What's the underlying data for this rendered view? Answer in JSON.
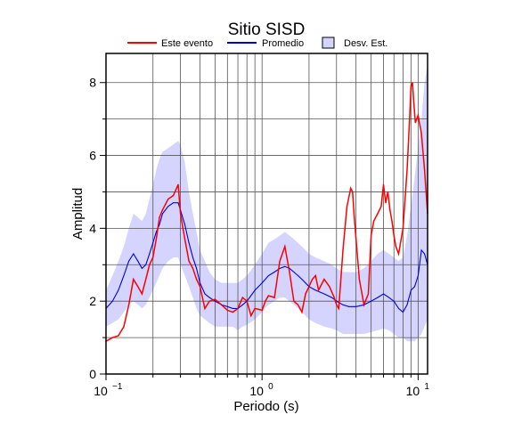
{
  "chart_data": {
    "type": "line",
    "title": "Sitio SISD",
    "xlabel": "Periodo (s)",
    "ylabel": "Amplitud",
    "x_scale": "log",
    "xlim": [
      0.1,
      11.5
    ],
    "ylim": [
      0,
      8.8
    ],
    "x_ticks": [
      {
        "value": 0.1,
        "mant": "10",
        "exp": "−1"
      },
      {
        "value": 1,
        "mant": "10",
        "exp": "0"
      },
      {
        "value": 10,
        "mant": "10",
        "exp": "1"
      }
    ],
    "y_ticks": [
      0,
      2,
      4,
      6,
      8
    ],
    "grid": true,
    "legend_position": "top",
    "legend": [
      {
        "label": "Este evento",
        "kind": "line",
        "color": "#ff0000"
      },
      {
        "label": "Promedio",
        "kind": "line",
        "color": "#0000dd"
      },
      {
        "label": "Desv. Est.",
        "kind": "box",
        "color": "#d4d4ff"
      }
    ],
    "series": [
      {
        "name": "Este evento",
        "color": "#ff0000",
        "x": [
          0.1,
          0.11,
          0.12,
          0.13,
          0.14,
          0.15,
          0.16,
          0.17,
          0.18,
          0.19,
          0.2,
          0.21,
          0.22,
          0.23,
          0.25,
          0.27,
          0.29,
          0.3,
          0.32,
          0.34,
          0.36,
          0.38,
          0.4,
          0.43,
          0.46,
          0.5,
          0.55,
          0.6,
          0.65,
          0.7,
          0.75,
          0.8,
          0.85,
          0.9,
          1.0,
          1.05,
          1.1,
          1.2,
          1.3,
          1.4,
          1.5,
          1.6,
          1.7,
          1.8,
          1.9,
          2.0,
          2.1,
          2.2,
          2.3,
          2.5,
          2.7,
          2.9,
          3.0,
          3.1,
          3.3,
          3.5,
          3.7,
          3.8,
          3.9,
          4.0,
          4.2,
          4.5,
          4.8,
          5.0,
          5.2,
          5.5,
          5.8,
          6.0,
          6.2,
          6.4,
          6.6,
          6.8,
          7.0,
          7.2,
          7.5,
          8.0,
          8.5,
          8.8,
          9.0,
          9.2,
          9.4,
          9.6,
          10.0,
          10.5,
          11.0,
          11.5
        ],
        "y": [
          0.9,
          1.0,
          1.05,
          1.3,
          1.9,
          2.6,
          2.4,
          2.2,
          2.6,
          3.0,
          3.2,
          3.7,
          4.3,
          4.5,
          4.8,
          4.9,
          5.2,
          4.4,
          3.7,
          3.1,
          2.9,
          2.6,
          2.4,
          1.8,
          2.0,
          2.05,
          1.9,
          1.75,
          1.7,
          1.8,
          2.1,
          2.0,
          1.6,
          1.8,
          1.75,
          2.0,
          2.15,
          2.1,
          3.1,
          3.5,
          2.8,
          2.0,
          1.9,
          1.7,
          2.2,
          2.4,
          2.6,
          2.7,
          2.3,
          2.6,
          2.4,
          2.1,
          1.9,
          1.8,
          3.4,
          4.6,
          5.1,
          5.0,
          4.3,
          3.7,
          2.6,
          1.9,
          2.2,
          3.8,
          4.2,
          4.4,
          4.6,
          5.2,
          4.7,
          5.0,
          4.5,
          4.2,
          3.8,
          3.5,
          3.3,
          4.0,
          5.6,
          6.9,
          7.9,
          8.0,
          7.4,
          6.9,
          7.1,
          6.6,
          5.6,
          4.4
        ]
      },
      {
        "name": "Promedio",
        "color": "#0000dd",
        "x": [
          0.1,
          0.11,
          0.12,
          0.13,
          0.14,
          0.15,
          0.16,
          0.17,
          0.18,
          0.19,
          0.2,
          0.21,
          0.22,
          0.23,
          0.25,
          0.27,
          0.29,
          0.3,
          0.32,
          0.34,
          0.36,
          0.38,
          0.4,
          0.43,
          0.46,
          0.5,
          0.55,
          0.6,
          0.65,
          0.7,
          0.75,
          0.8,
          0.9,
          1.0,
          1.1,
          1.2,
          1.3,
          1.4,
          1.5,
          1.6,
          1.7,
          1.8,
          1.9,
          2.0,
          2.2,
          2.5,
          2.8,
          3.0,
          3.3,
          3.6,
          4.0,
          4.5,
          5.0,
          5.5,
          6.0,
          6.5,
          7.0,
          7.5,
          8.0,
          8.5,
          9.0,
          9.5,
          10.0,
          10.5,
          11.0,
          11.5
        ],
        "y": [
          1.8,
          2.0,
          2.3,
          2.7,
          3.1,
          3.3,
          3.1,
          2.9,
          3.0,
          3.3,
          3.6,
          3.9,
          4.1,
          4.4,
          4.6,
          4.7,
          4.7,
          4.5,
          4.1,
          3.6,
          3.2,
          2.9,
          2.5,
          2.2,
          2.1,
          2.0,
          1.9,
          1.85,
          1.8,
          1.8,
          1.9,
          2.0,
          2.3,
          2.5,
          2.7,
          2.8,
          2.9,
          2.95,
          2.9,
          2.8,
          2.7,
          2.6,
          2.5,
          2.4,
          2.3,
          2.2,
          2.1,
          2.0,
          1.9,
          1.85,
          1.85,
          1.9,
          2.0,
          2.1,
          2.2,
          2.1,
          2.0,
          1.8,
          1.7,
          1.9,
          2.3,
          2.4,
          2.7,
          3.4,
          3.3,
          3.0
        ]
      }
    ],
    "std_band": {
      "name": "Desv. Est.",
      "color": "#d4d4ff",
      "x": [
        0.1,
        0.11,
        0.12,
        0.13,
        0.14,
        0.15,
        0.16,
        0.17,
        0.18,
        0.19,
        0.2,
        0.21,
        0.22,
        0.23,
        0.25,
        0.27,
        0.29,
        0.3,
        0.32,
        0.34,
        0.36,
        0.38,
        0.4,
        0.43,
        0.46,
        0.5,
        0.55,
        0.6,
        0.65,
        0.7,
        0.75,
        0.8,
        0.9,
        1.0,
        1.1,
        1.2,
        1.3,
        1.4,
        1.5,
        1.6,
        1.7,
        1.8,
        1.9,
        2.0,
        2.2,
        2.5,
        2.8,
        3.0,
        3.3,
        3.6,
        4.0,
        4.5,
        5.0,
        5.5,
        6.0,
        6.5,
        7.0,
        7.5,
        8.0,
        8.5,
        9.0,
        9.5,
        10.0,
        10.5,
        11.0,
        11.5
      ],
      "upper": [
        2.3,
        2.7,
        3.1,
        3.5,
        4.0,
        4.4,
        4.3,
        4.2,
        4.4,
        4.8,
        5.2,
        5.6,
        5.9,
        6.1,
        6.2,
        6.3,
        6.4,
        6.3,
        5.8,
        5.0,
        4.4,
        3.9,
        3.4,
        3.1,
        2.8,
        2.6,
        2.5,
        2.5,
        2.5,
        2.5,
        2.6,
        2.7,
        3.0,
        3.3,
        3.6,
        3.7,
        3.8,
        3.9,
        3.8,
        3.7,
        3.6,
        3.5,
        3.4,
        3.3,
        3.2,
        3.1,
        3.0,
        2.9,
        2.8,
        2.8,
        2.8,
        2.9,
        3.1,
        3.3,
        3.4,
        3.3,
        3.2,
        3.1,
        3.2,
        3.8,
        4.6,
        5.4,
        6.2,
        7.0,
        8.0,
        8.5
      ],
      "lower": [
        1.3,
        1.4,
        1.5,
        1.7,
        1.9,
        2.0,
        1.9,
        1.8,
        1.9,
        2.1,
        2.3,
        2.5,
        2.7,
        2.9,
        3.1,
        3.2,
        3.2,
        3.0,
        2.7,
        2.4,
        2.1,
        1.8,
        1.6,
        1.5,
        1.4,
        1.3,
        1.3,
        1.3,
        1.3,
        1.2,
        1.3,
        1.35,
        1.5,
        1.7,
        1.9,
        2.0,
        2.1,
        2.1,
        2.0,
        1.9,
        1.8,
        1.7,
        1.6,
        1.5,
        1.4,
        1.3,
        1.25,
        1.2,
        1.1,
        1.1,
        1.1,
        1.1,
        1.15,
        1.2,
        1.25,
        1.2,
        1.1,
        1.0,
        1.0,
        0.9,
        0.9,
        0.9,
        1.0,
        1.1,
        1.3,
        1.5
      ]
    }
  }
}
